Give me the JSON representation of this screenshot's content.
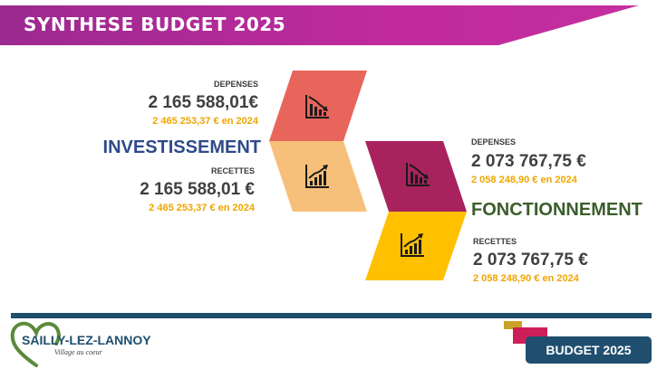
{
  "header": {
    "title": "SYNTHESE BUDGET 2025"
  },
  "investissement": {
    "title": "INVESTISSEMENT",
    "depenses": {
      "label": "DEPENSES",
      "amount": "2 165 588,01€",
      "previous": "2 465 253,37 € en 2024"
    },
    "recettes": {
      "label": "RECETTES",
      "amount": "2 165 588,01 €",
      "previous": "2 465 253,37 € en 2024"
    }
  },
  "fonctionnement": {
    "title": "FONCTIONNEMENT",
    "depenses": {
      "label": "DEPENSES",
      "amount": "2 073 767,75 €",
      "previous": "2 058 248,90 € en 2024"
    },
    "recettes": {
      "label": "RECETTES",
      "amount": "2 073 767,75 €",
      "previous": "2 058 248,90 € en 2024"
    }
  },
  "colors": {
    "title_banner": "#c02a9c",
    "invest_depenses_shape": "#e8655b",
    "invest_recettes_shape": "#f7c07a",
    "fonct_depenses_shape": "#a8235e",
    "fonct_recettes_shape": "#ffc000",
    "invest_title": "#2f4a8a",
    "fonct_title": "#3b5e2b",
    "previous_year_text": "#f0a500",
    "footer": "#1f4e6e"
  },
  "icons": {
    "decrease": "chart-decrease-icon",
    "increase": "chart-increase-icon"
  },
  "footer": {
    "logo_name": "SAILLY-LEZ-LANNOY",
    "logo_tagline": "Village au coeur",
    "badge": "BUDGET 2025"
  }
}
